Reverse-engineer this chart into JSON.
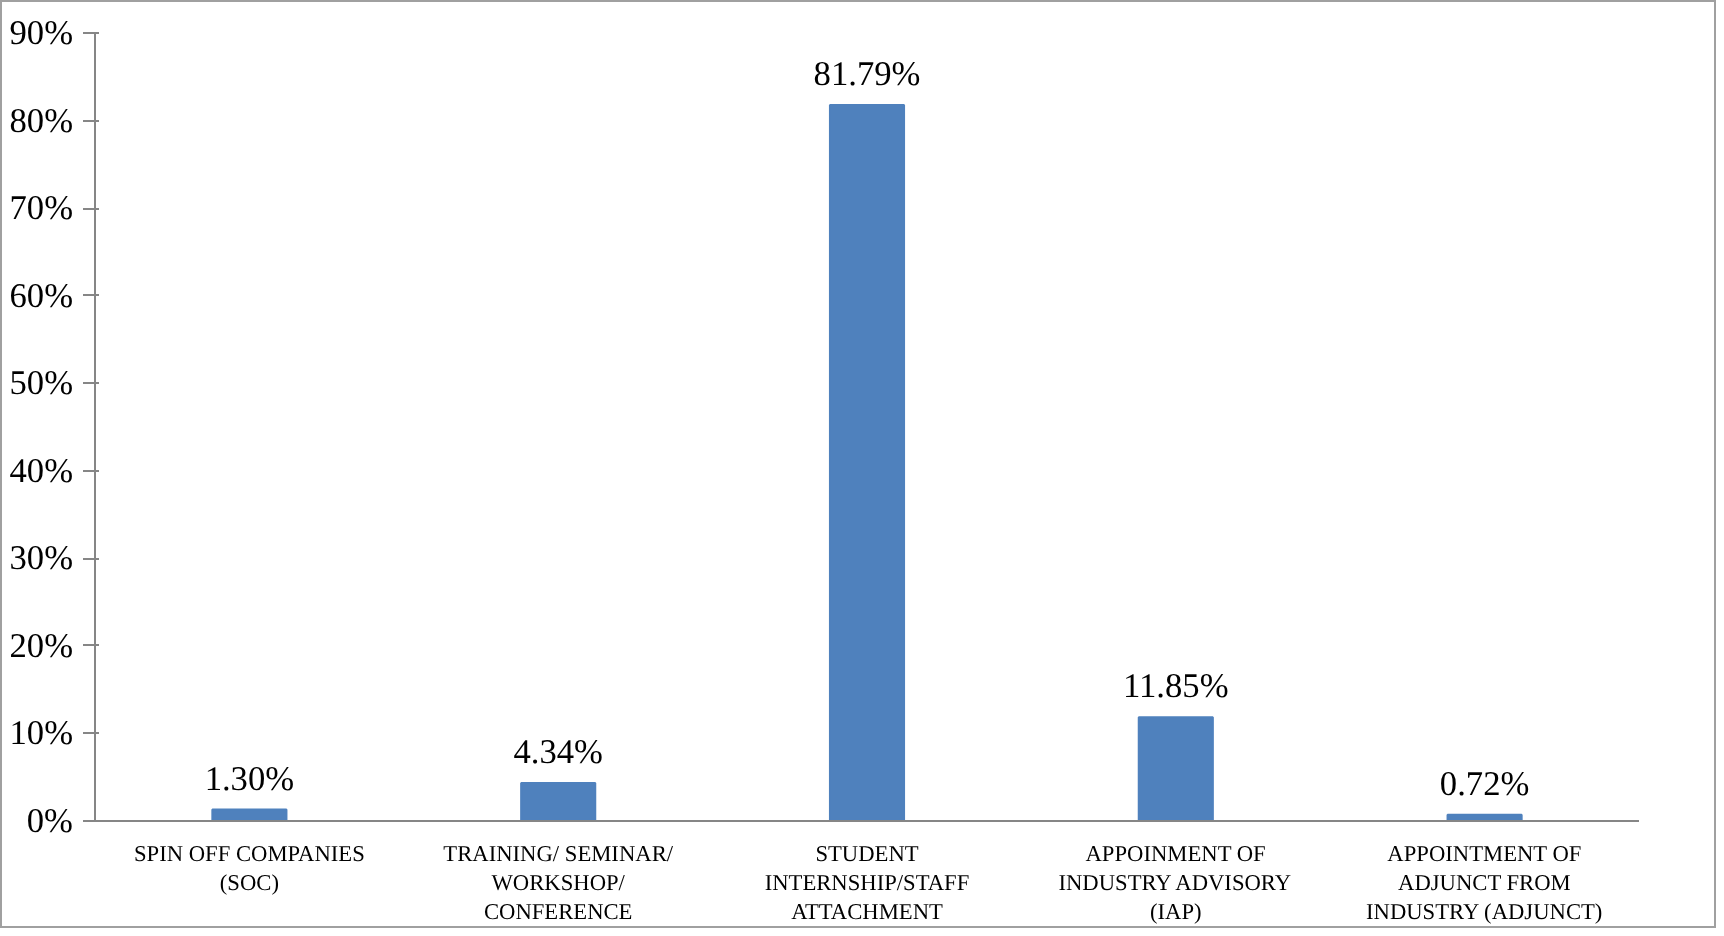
{
  "chart_data": {
    "type": "bar",
    "categories": [
      "SPIN OFF COMPANIES (SOC)",
      "TRAINING/ SEMINAR/ WORKSHOP/ CONFERENCE",
      "STUDENT INTERNSHIP/STAFF ATTACHMENT",
      "APPOINMENT OF INDUSTRY ADVISORY (IAP)",
      "APPOINTMENT OF ADJUNCT FROM INDUSTRY (ADJUNCT)"
    ],
    "values": [
      1.3,
      4.34,
      81.79,
      11.85,
      0.72
    ],
    "value_labels": [
      "1.30%",
      "4.34%",
      "81.79%",
      "11.85%",
      "0.72%"
    ],
    "color": "#4f81bd",
    "ylim": [
      0,
      90
    ],
    "yticks": [
      {
        "value": 0,
        "label": "0%"
      },
      {
        "value": 10,
        "label": "10%"
      },
      {
        "value": 20,
        "label": "20%"
      },
      {
        "value": 30,
        "label": "30%"
      },
      {
        "value": 40,
        "label": "40%"
      },
      {
        "value": 50,
        "label": "50%"
      },
      {
        "value": 60,
        "label": "60%"
      },
      {
        "value": 70,
        "label": "70%"
      },
      {
        "value": 80,
        "label": "80%"
      },
      {
        "value": 90,
        "label": "90%"
      }
    ],
    "grid": false
  }
}
